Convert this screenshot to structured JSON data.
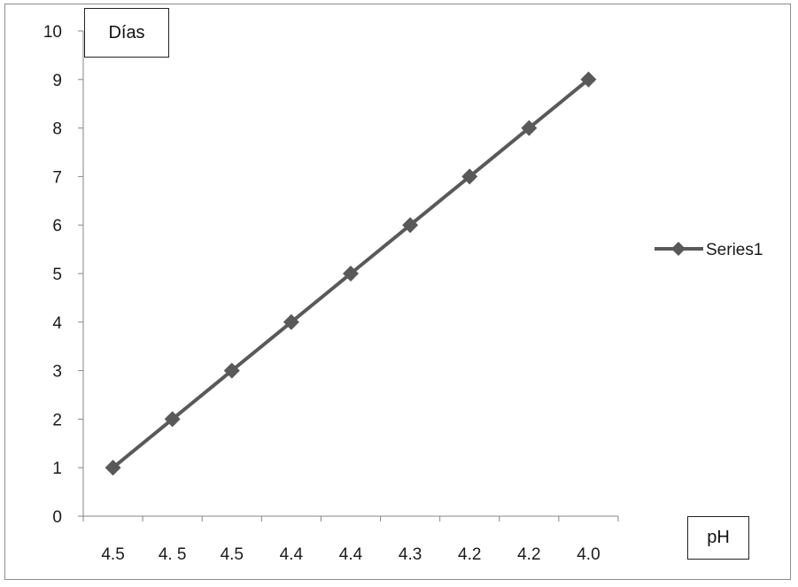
{
  "chart_data": {
    "type": "line",
    "title": "",
    "xlabel": "pH",
    "ylabel": "Días",
    "categories": [
      "4.5",
      "4. 5",
      "4.5",
      "4.4",
      "4.4",
      "4.3",
      "4.2",
      "4.2",
      "4.0"
    ],
    "series": [
      {
        "name": "Series1",
        "values": [
          1,
          2,
          3,
          4,
          5,
          6,
          7,
          8,
          9
        ],
        "color": "#595959",
        "marker": "diamond"
      }
    ],
    "ylim": [
      0,
      10
    ],
    "yticks": [
      "0",
      "1",
      "2",
      "3",
      "4",
      "5",
      "6",
      "7",
      "8",
      "9",
      "10"
    ],
    "grid": false,
    "legend": "right"
  }
}
